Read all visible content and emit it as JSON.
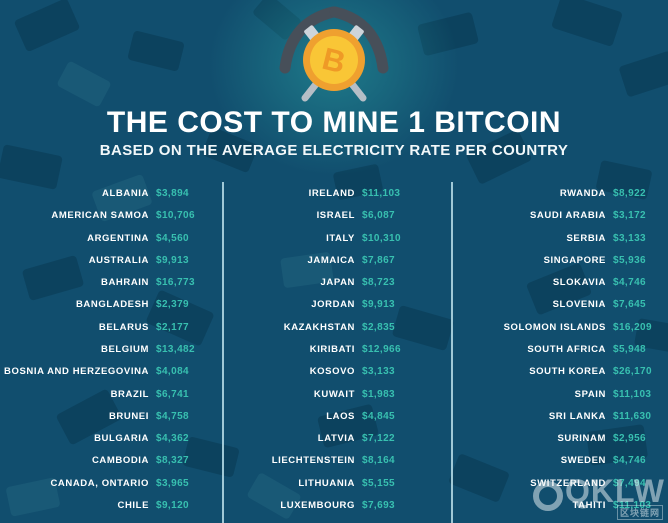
{
  "header": {
    "icon": "bitcoin-coin-with-crossed-pickaxes"
  },
  "chart_data": {
    "type": "table",
    "title": "THE COST TO MINE 1 BITCOIN",
    "subtitle": "BASED ON THE AVERAGE ELECTRICITY RATE PER COUNTRY",
    "columns": [
      {
        "entries": [
          [
            "ALBANIA",
            "$3,894"
          ],
          [
            "AMERICAN SAMOA",
            "$10,706"
          ],
          [
            "ARGENTINA",
            "$4,560"
          ],
          [
            "AUSTRALIA",
            "$9,913"
          ],
          [
            "BAHRAIN",
            "$16,773"
          ],
          [
            "BANGLADESH",
            "$2,379"
          ],
          [
            "BELARUS",
            "$2,177"
          ],
          [
            "BELGIUM",
            "$13,482"
          ],
          [
            "BOSNIA AND HERZEGOVINA",
            "$4,084"
          ],
          [
            "BRAZIL",
            "$6,741"
          ],
          [
            "BRUNEI",
            "$4,758"
          ],
          [
            "BULGARIA",
            "$4,362"
          ],
          [
            "CAMBODIA",
            "$8,327"
          ],
          [
            "CANADA, ONTARIO",
            "$3,965"
          ],
          [
            "CHILE",
            "$9,120"
          ]
        ]
      },
      {
        "entries": [
          [
            "IRELAND",
            "$11,103"
          ],
          [
            "ISRAEL",
            "$6,087"
          ],
          [
            "ITALY",
            "$10,310"
          ],
          [
            "JAMAICA",
            "$7,867"
          ],
          [
            "JAPAN",
            "$8,723"
          ],
          [
            "JORDAN",
            "$9,913"
          ],
          [
            "KAZAKHSTAN",
            "$2,835"
          ],
          [
            "KIRIBATI",
            "$12,966"
          ],
          [
            "KOSOVO",
            "$3,133"
          ],
          [
            "KUWAIT",
            "$1,983"
          ],
          [
            "LAOS",
            "$4,845"
          ],
          [
            "LATVIA",
            "$7,122"
          ],
          [
            "LIECHTENSTEIN",
            "$8,164"
          ],
          [
            "LITHUANIA",
            "$5,155"
          ],
          [
            "LUXEMBOURG",
            "$7,693"
          ]
        ]
      },
      {
        "entries": [
          [
            "RWANDA",
            "$8,922"
          ],
          [
            "SAUDI ARABIA",
            "$3,172"
          ],
          [
            "SERBIA",
            "$3,133"
          ],
          [
            "SINGAPORE",
            "$5,936"
          ],
          [
            "SLOKAVIA",
            "$4,746"
          ],
          [
            "SLOVENIA",
            "$7,645"
          ],
          [
            "SOLOMON ISLANDS",
            "$16,209"
          ],
          [
            "SOUTH AFRICA",
            "$5,948"
          ],
          [
            "SOUTH KOREA",
            "$26,170"
          ],
          [
            "SPAIN",
            "$11,103"
          ],
          [
            "SRI LANKA",
            "$11,630"
          ],
          [
            "SURINAM",
            "$2,956"
          ],
          [
            "SWEDEN",
            "$4,746"
          ],
          [
            "SWITZERLAND",
            "$7,494"
          ],
          [
            "TAHITI",
            "$11,103"
          ]
        ]
      }
    ]
  },
  "watermark": {
    "text": "QKLW",
    "subtext": "区块链网"
  },
  "colors": {
    "background": "#114e6e",
    "country_text": "#ffffff",
    "value_text": "#38c0b0",
    "separator": "#badfea",
    "coin_inner": "#f9c636",
    "coin_ring": "#efa02f",
    "coin_symbol": "#ef9a26",
    "pickaxe_head": "#474f59",
    "pickaxe_handle": "#b6bec6",
    "glow": "#28989c"
  }
}
